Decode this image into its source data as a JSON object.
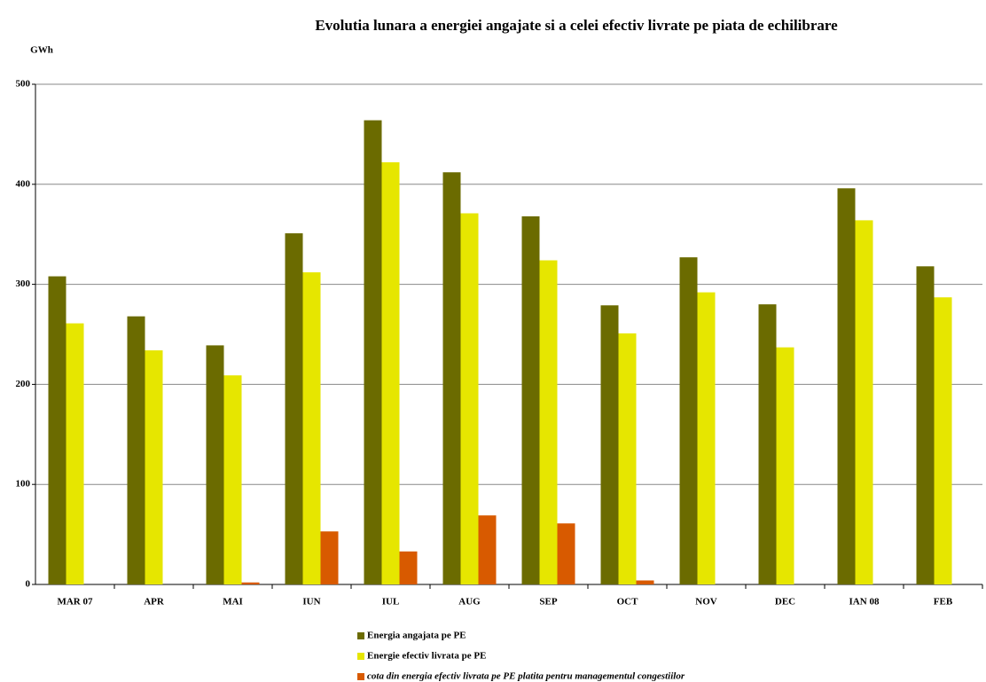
{
  "chart_data": {
    "type": "bar",
    "title": "Evolutia lunara a energiei angajate si a celei efectiv livrate pe piata de echilibrare",
    "y_label": "GWh",
    "categories": [
      "MAR 07",
      "APR",
      "MAI",
      "IUN",
      "IUL",
      "AUG",
      "SEP",
      "OCT",
      "NOV",
      "DEC",
      "IAN 08",
      "FEB"
    ],
    "series": [
      {
        "name": "Energia angajata pe PE",
        "color": "#6b6b00",
        "values": [
          308,
          268,
          239,
          351,
          464,
          412,
          368,
          279,
          327,
          280,
          396,
          318
        ]
      },
      {
        "name": "Energie efectiv livrata pe PE",
        "color": "#e6e600",
        "values": [
          261,
          234,
          209,
          312,
          422,
          371,
          324,
          251,
          292,
          237,
          364,
          287
        ]
      },
      {
        "name": "cota din energia efectiv livrata pe PE platita pentru managementul congestiilor",
        "color": "#d85a00",
        "font_style": "italic",
        "values": [
          0,
          0,
          2,
          53,
          33,
          69,
          61,
          4,
          0,
          0,
          0,
          0
        ]
      }
    ],
    "ylim": [
      0,
      500
    ],
    "yticks": [
      0,
      100,
      200,
      300,
      400,
      500
    ],
    "grid": true
  }
}
